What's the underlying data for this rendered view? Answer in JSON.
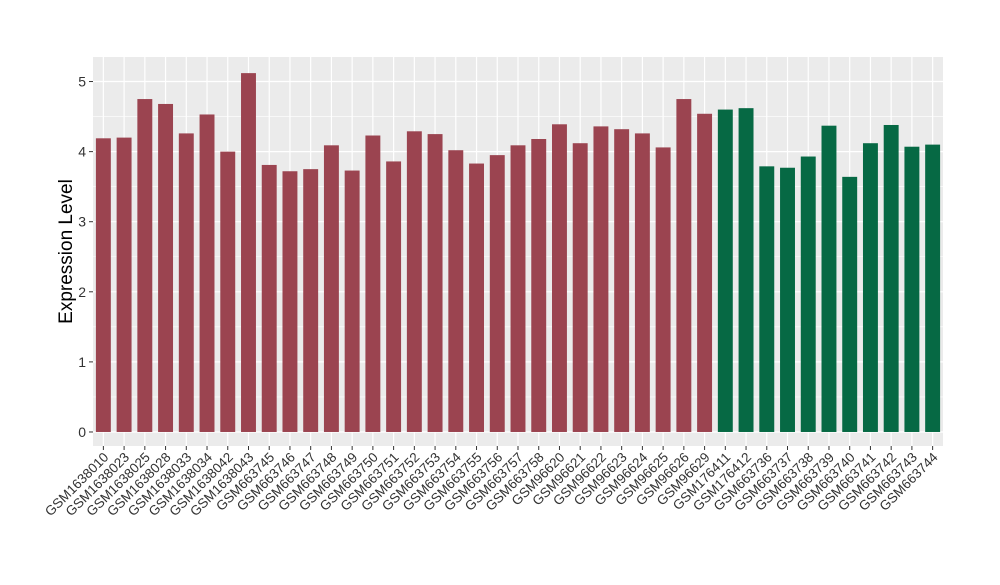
{
  "chart_data": {
    "type": "bar",
    "ylabel": "Expression Level",
    "xlabel": "",
    "ylim": [
      -0.2,
      5.35
    ],
    "yticks": [
      0,
      1,
      2,
      3,
      4,
      5
    ],
    "grid": true,
    "colors": {
      "group_a": "#9B4450",
      "group_b": "#066944",
      "panel": "#EBEBEB",
      "grid": "#FFFFFF"
    },
    "categories": [
      "GSM1638010",
      "GSM1638023",
      "GSM1638025",
      "GSM1638028",
      "GSM1638033",
      "GSM1638034",
      "GSM1638042",
      "GSM1638043",
      "GSM663745",
      "GSM663746",
      "GSM663747",
      "GSM663748",
      "GSM663749",
      "GSM663750",
      "GSM663751",
      "GSM663752",
      "GSM663753",
      "GSM663754",
      "GSM663755",
      "GSM663756",
      "GSM663757",
      "GSM663758",
      "GSM96620",
      "GSM96621",
      "GSM96622",
      "GSM96623",
      "GSM96624",
      "GSM96625",
      "GSM96626",
      "GSM96629",
      "GSM176411",
      "GSM176412",
      "GSM663736",
      "GSM663737",
      "GSM663738",
      "GSM663739",
      "GSM663740",
      "GSM663741",
      "GSM663742",
      "GSM663743",
      "GSM663744"
    ],
    "values": [
      4.19,
      4.2,
      4.75,
      4.68,
      4.26,
      4.53,
      4.0,
      5.12,
      3.81,
      3.72,
      3.75,
      4.09,
      3.73,
      4.23,
      3.86,
      4.29,
      4.25,
      4.02,
      3.83,
      3.95,
      4.09,
      4.18,
      4.39,
      4.12,
      4.36,
      4.32,
      4.26,
      4.06,
      4.75,
      4.54,
      4.6,
      4.62,
      3.79,
      3.77,
      3.93,
      4.37,
      3.64,
      4.12,
      4.38,
      4.07,
      4.1
    ],
    "groups": [
      "a",
      "a",
      "a",
      "a",
      "a",
      "a",
      "a",
      "a",
      "a",
      "a",
      "a",
      "a",
      "a",
      "a",
      "a",
      "a",
      "a",
      "a",
      "a",
      "a",
      "a",
      "a",
      "a",
      "a",
      "a",
      "a",
      "a",
      "a",
      "a",
      "a",
      "b",
      "b",
      "b",
      "b",
      "b",
      "b",
      "b",
      "b",
      "b",
      "b",
      "b"
    ]
  }
}
